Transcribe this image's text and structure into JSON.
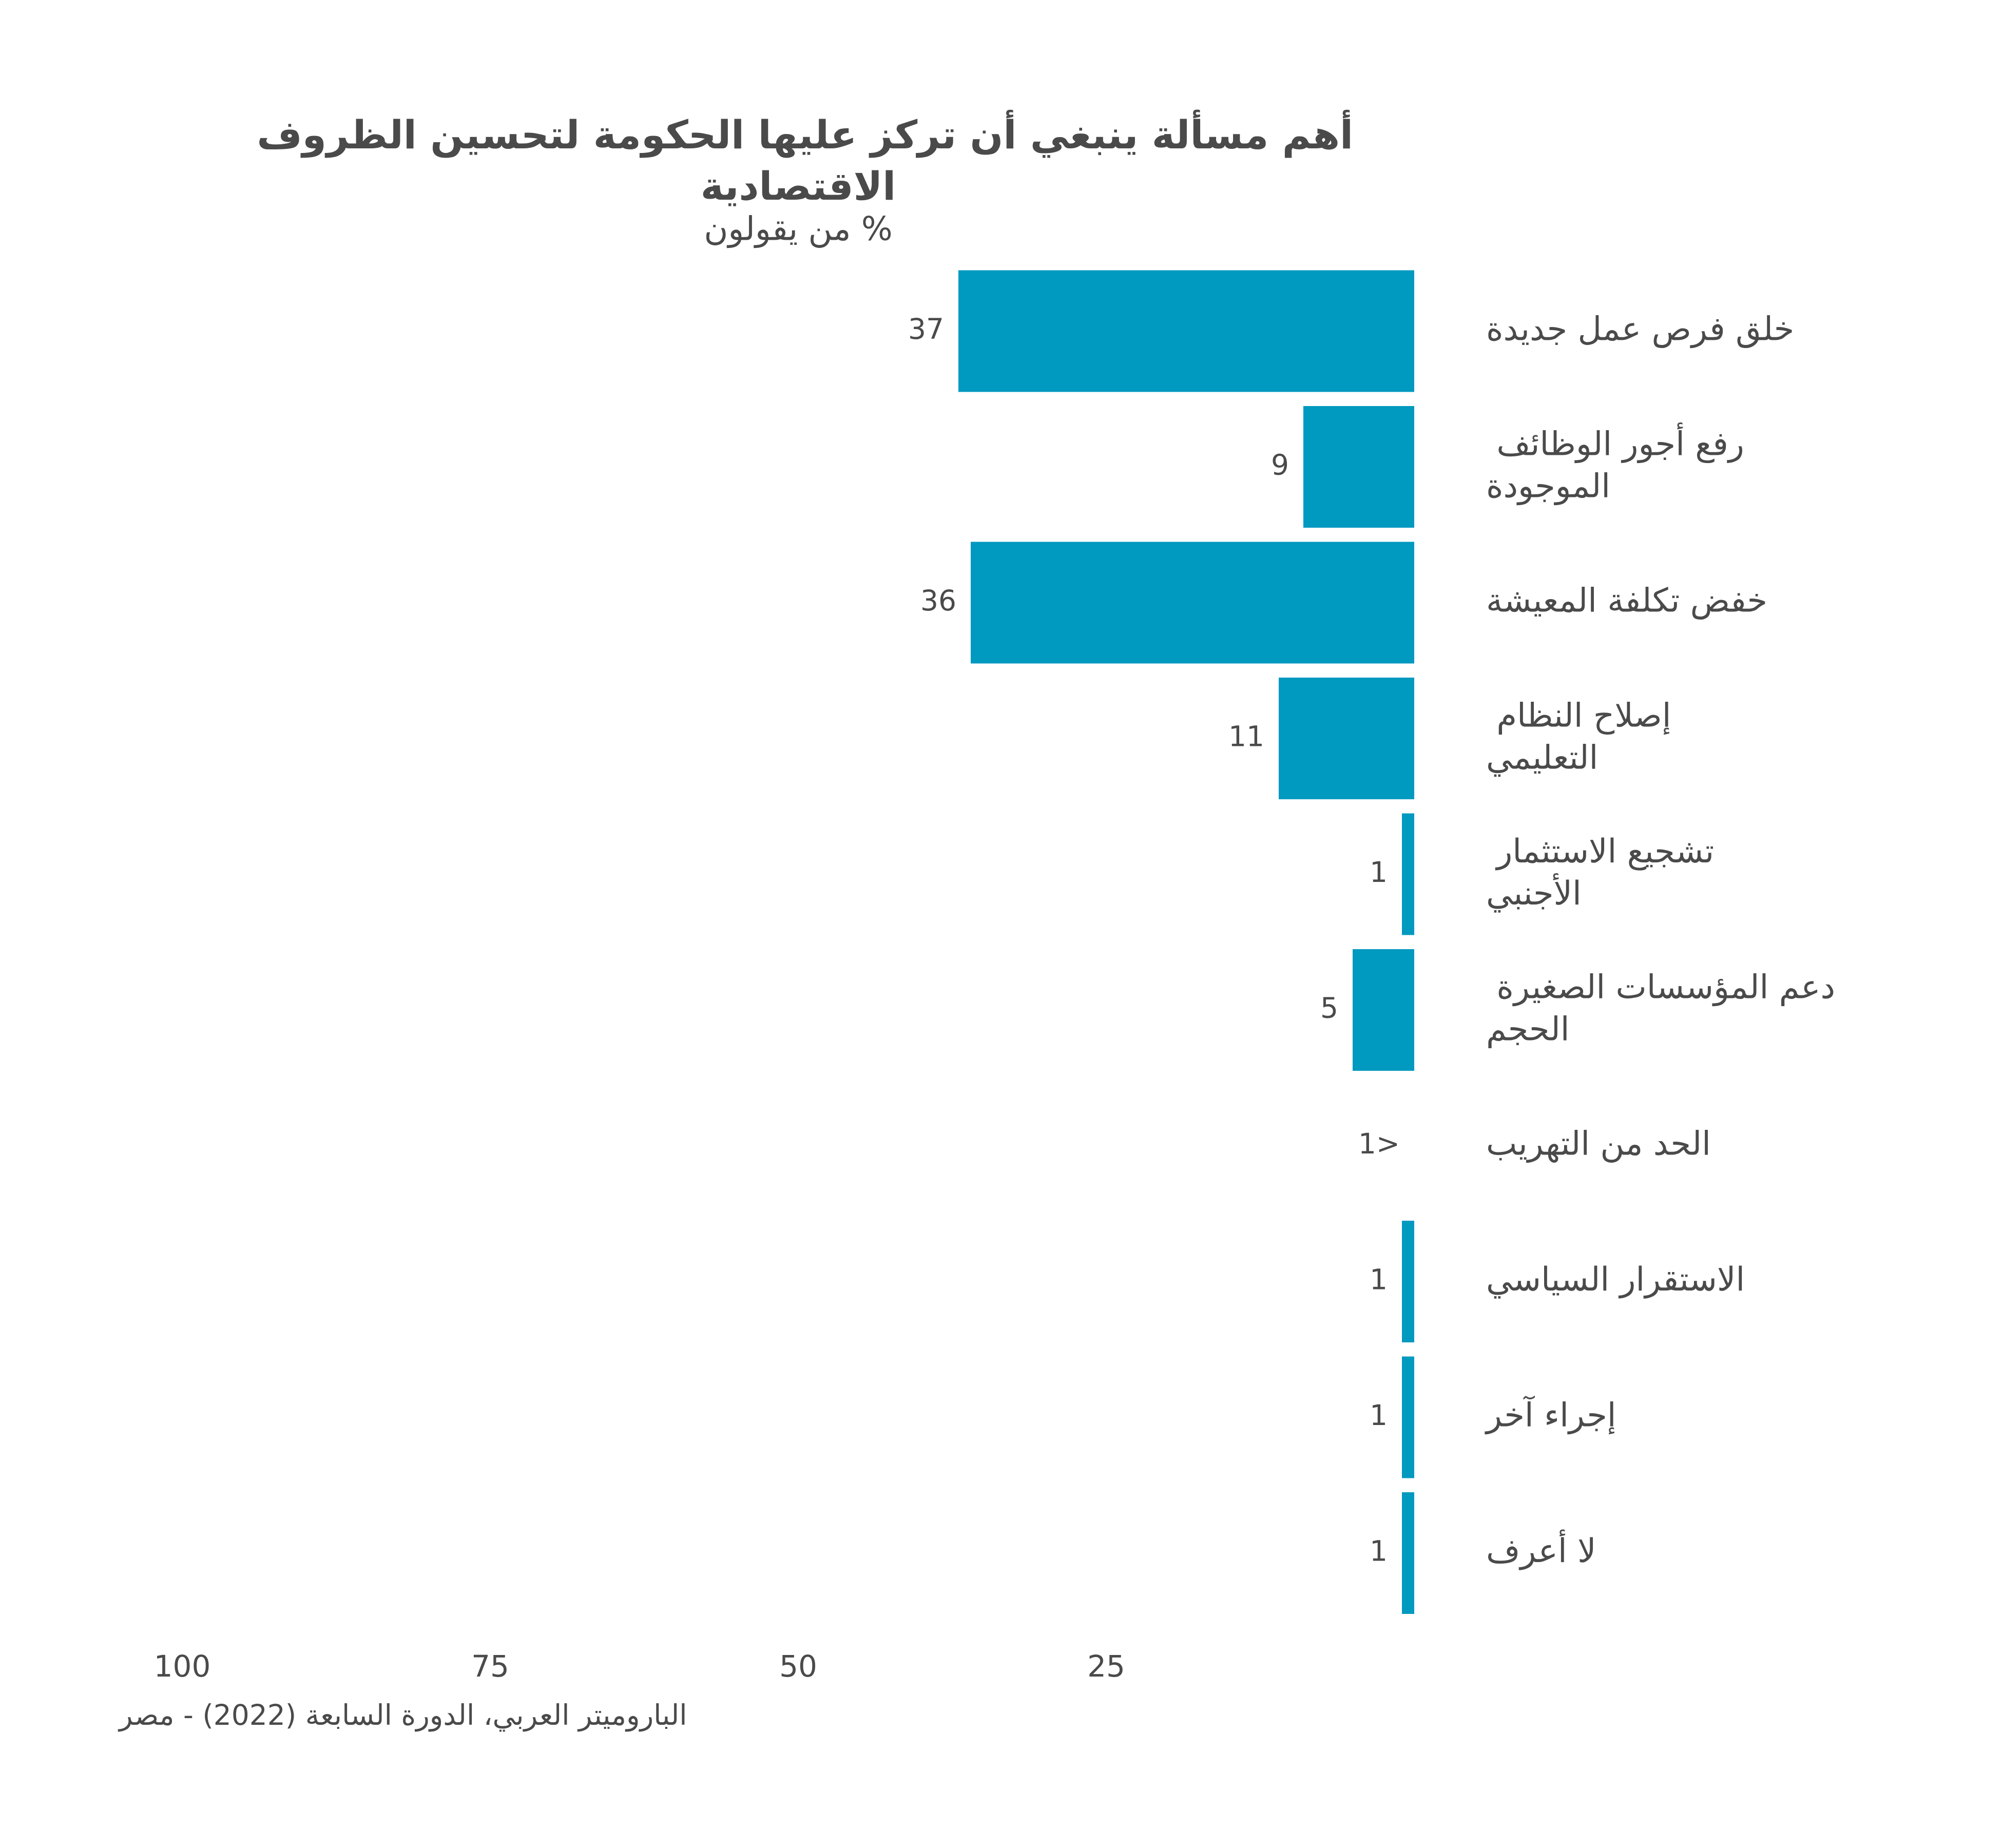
{
  "chart_data": {
    "type": "barh",
    "title": "أهم مسألة ينبغي أن تركز عليها الحكومة لتحسين الظروف الاقتصادية",
    "subtitle": "% من يقولون",
    "source": "الباروميتر العربي، الدورة السابعة (2022) - مصر",
    "categories": [
      "خلق فرص عمل جديدة",
      "رفع أجور الوظائف الموجودة",
      "خفض تكلفة المعيشة",
      "إصلاح النظام التعليمي",
      "تشجيع الاستثمار الأجنبي",
      "دعم المؤسسات الصغيرة الحجم",
      "الحد من التهريب",
      "الاستقرار السياسي",
      "إجراء آخر",
      "لا أعرف"
    ],
    "values": [
      37,
      9,
      36,
      11,
      1,
      5,
      0,
      1,
      1,
      1
    ],
    "value_labels": [
      "37",
      "9",
      "36",
      "11",
      "1",
      "5",
      "<1",
      "1",
      "1",
      "1"
    ],
    "color": "#0099c0",
    "xlim": [
      0,
      100
    ],
    "xticks": [
      25,
      50,
      75,
      100
    ],
    "x_reversed": true,
    "grid": false
  }
}
